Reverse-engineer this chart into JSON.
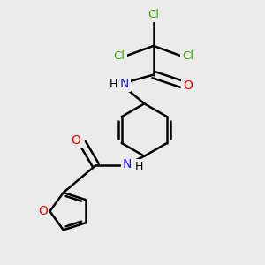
{
  "background_color": "#ebebeb",
  "atom_colors": {
    "N": "#1a1aff",
    "O": "#ff0000",
    "Cl": "#33aa00"
  },
  "bond_color": "#000000",
  "bond_width": 1.8,
  "font_size": 10,
  "figsize": [
    3.0,
    3.0
  ],
  "dpi": 100,
  "xlim": [
    0,
    10
  ],
  "ylim": [
    0,
    10
  ]
}
